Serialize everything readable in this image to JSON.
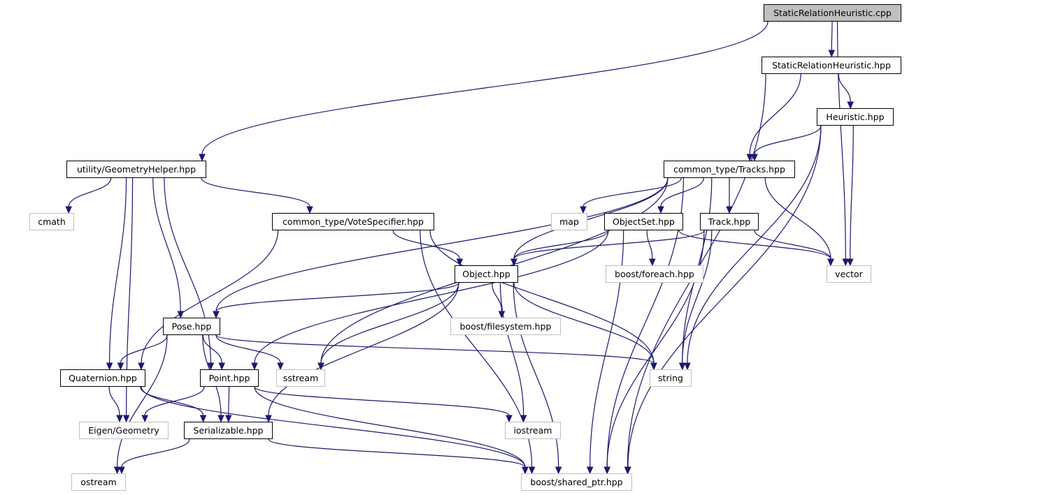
{
  "colors": {
    "edge": "#191970",
    "root_fill": "#bfbfbf",
    "external_border": "#bfbfbf",
    "node_border": "#000000"
  },
  "nodes": [
    {
      "id": "cpp",
      "label": "StaticRelationHeuristic.cpp",
      "kind": "root"
    },
    {
      "id": "srh",
      "label": "StaticRelationHeuristic.hpp",
      "kind": "file"
    },
    {
      "id": "heur",
      "label": "Heuristic.hpp",
      "kind": "file"
    },
    {
      "id": "geom",
      "label": "utility/GeometryHelper.hpp",
      "kind": "file"
    },
    {
      "id": "tracks",
      "label": "common_type/Tracks.hpp",
      "kind": "file"
    },
    {
      "id": "cmath",
      "label": "cmath",
      "kind": "external"
    },
    {
      "id": "vote",
      "label": "common_type/VoteSpecifier.hpp",
      "kind": "file"
    },
    {
      "id": "map",
      "label": "map",
      "kind": "external"
    },
    {
      "id": "objset",
      "label": "ObjectSet.hpp",
      "kind": "file"
    },
    {
      "id": "track",
      "label": "Track.hpp",
      "kind": "file"
    },
    {
      "id": "object",
      "label": "Object.hpp",
      "kind": "file"
    },
    {
      "id": "foreach",
      "label": "boost/foreach.hpp",
      "kind": "external"
    },
    {
      "id": "vector",
      "label": "vector",
      "kind": "external"
    },
    {
      "id": "pose",
      "label": "Pose.hpp",
      "kind": "file"
    },
    {
      "id": "fs",
      "label": "boost/filesystem.hpp",
      "kind": "external"
    },
    {
      "id": "quat",
      "label": "Quaternion.hpp",
      "kind": "file"
    },
    {
      "id": "point",
      "label": "Point.hpp",
      "kind": "file"
    },
    {
      "id": "sstream",
      "label": "sstream",
      "kind": "external"
    },
    {
      "id": "string",
      "label": "string",
      "kind": "external"
    },
    {
      "id": "eigen",
      "label": "Eigen/Geometry",
      "kind": "external"
    },
    {
      "id": "serial",
      "label": "Serializable.hpp",
      "kind": "file"
    },
    {
      "id": "iostream",
      "label": "iostream",
      "kind": "external"
    },
    {
      "id": "ostream",
      "label": "ostream",
      "kind": "external"
    },
    {
      "id": "shptr",
      "label": "boost/shared_ptr.hpp",
      "kind": "external"
    }
  ],
  "edges": [
    [
      "cpp",
      "srh"
    ],
    [
      "cpp",
      "geom"
    ],
    [
      "cpp",
      "vector"
    ],
    [
      "srh",
      "heur"
    ],
    [
      "srh",
      "tracks"
    ],
    [
      "srh",
      "shptr"
    ],
    [
      "heur",
      "tracks"
    ],
    [
      "heur",
      "vector"
    ],
    [
      "heur",
      "string"
    ],
    [
      "heur",
      "shptr"
    ],
    [
      "geom",
      "cmath"
    ],
    [
      "geom",
      "vote"
    ],
    [
      "geom",
      "pose"
    ],
    [
      "geom",
      "quat"
    ],
    [
      "geom",
      "point"
    ],
    [
      "geom",
      "eigen"
    ],
    [
      "tracks",
      "map"
    ],
    [
      "tracks",
      "objset"
    ],
    [
      "tracks",
      "track"
    ],
    [
      "tracks",
      "object"
    ],
    [
      "tracks",
      "pose"
    ],
    [
      "tracks",
      "sstream"
    ],
    [
      "tracks",
      "vector"
    ],
    [
      "tracks",
      "string"
    ],
    [
      "tracks",
      "shptr"
    ],
    [
      "vote",
      "object"
    ],
    [
      "vote",
      "quat"
    ],
    [
      "vote",
      "string"
    ],
    [
      "vote",
      "shptr"
    ],
    [
      "objset",
      "object"
    ],
    [
      "objset",
      "point"
    ],
    [
      "objset",
      "foreach"
    ],
    [
      "objset",
      "vector"
    ],
    [
      "objset",
      "shptr"
    ],
    [
      "track",
      "object"
    ],
    [
      "track",
      "vector"
    ],
    [
      "track",
      "string"
    ],
    [
      "track",
      "shptr"
    ],
    [
      "object",
      "pose"
    ],
    [
      "object",
      "fs"
    ],
    [
      "object",
      "sstream"
    ],
    [
      "object",
      "string"
    ],
    [
      "object",
      "serial"
    ],
    [
      "object",
      "iostream"
    ],
    [
      "object",
      "shptr"
    ],
    [
      "pose",
      "quat"
    ],
    [
      "pose",
      "point"
    ],
    [
      "pose",
      "serial"
    ],
    [
      "pose",
      "sstream"
    ],
    [
      "pose",
      "string"
    ],
    [
      "pose",
      "ostream"
    ],
    [
      "quat",
      "eigen"
    ],
    [
      "quat",
      "serial"
    ],
    [
      "quat",
      "shptr"
    ],
    [
      "point",
      "eigen"
    ],
    [
      "point",
      "serial"
    ],
    [
      "point",
      "iostream"
    ],
    [
      "point",
      "shptr"
    ],
    [
      "serial",
      "ostream"
    ],
    [
      "serial",
      "shptr"
    ]
  ]
}
